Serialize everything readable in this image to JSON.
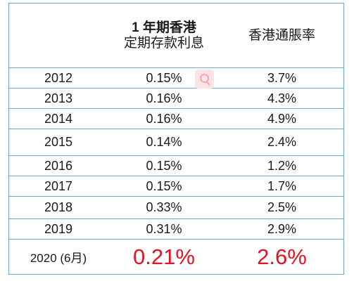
{
  "table": {
    "headers": [
      "",
      "1 年期香港\n定期存款利息",
      "香港通脹率"
    ],
    "header_lines": {
      "col2_line1": "1 年期香港",
      "col2_line2": "定期存款利息",
      "col3": "香港通脹率"
    },
    "rows": [
      {
        "year": "2012",
        "deposit_rate": "0.15%",
        "inflation": "3.7%"
      },
      {
        "year": "2013",
        "deposit_rate": "0.16%",
        "inflation": "4.3%"
      },
      {
        "year": "2014",
        "deposit_rate": "0.16%",
        "inflation": "4.9%"
      },
      {
        "year": "2015",
        "deposit_rate": "0.14%",
        "inflation": "2.4%"
      },
      {
        "year": "2016",
        "deposit_rate": "0.15%",
        "inflation": "1.2%"
      },
      {
        "year": "2017",
        "deposit_rate": "0.15%",
        "inflation": "1.7%"
      },
      {
        "year": "2018",
        "deposit_rate": "0.33%",
        "inflation": "2.5%"
      },
      {
        "year": "2019",
        "deposit_rate": "0.31%",
        "inflation": "2.9%"
      },
      {
        "year": "2020 (6月)",
        "deposit_rate": "0.21%",
        "inflation": "2.6%"
      }
    ]
  },
  "colors": {
    "border": "#6fa6d6",
    "highlight": "#e8101e",
    "watermark": "#fbe3e6"
  },
  "watermark_icon": "search-icon"
}
